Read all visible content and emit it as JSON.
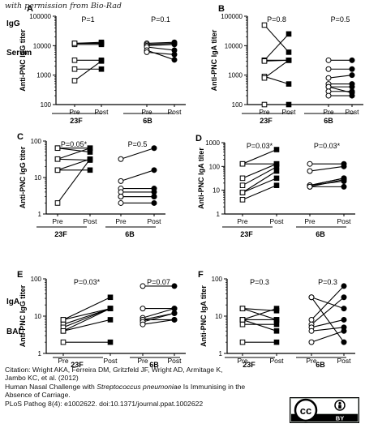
{
  "watermark": "with permission from Bio-Rad",
  "row_labels": {
    "igg": "IgG",
    "serum": "Serum",
    "iga": "IgA",
    "bal": "BAL"
  },
  "license_badge": {
    "cc": "cc",
    "by": "BY"
  },
  "citation": {
    "line1": "Citation: Wright AKA, Ferreira DM, Gritzfeld JF, Wright AD, Armitage K,",
    "line2": "Jambo KC, et al. (2012)",
    "line3_pre": "Human Nasal Challenge with ",
    "line3_species": "Streptococcus pneumoniae",
    "line3_post": " Is Immunising in the",
    "line4": "Absence of Carriage.",
    "line5": "PLoS Pathog 8(4): e1002622. doi:10.1371/journal.ppat.1002622"
  },
  "colors": {
    "line": "#000000",
    "open_fill": "#ffffff",
    "filled": "#000000"
  },
  "chart_data": [
    {
      "panel": "A",
      "type": "line",
      "scale": "log",
      "ylabel": "Anti-PNC IgG titer",
      "ylim": [
        100,
        100000
      ],
      "yticks": [
        100,
        1000,
        10000,
        100000
      ],
      "yticklabels": [
        "100",
        "1000",
        "10000",
        "100000"
      ],
      "groups": [
        {
          "name": "23F",
          "pvalue": "P=1",
          "marker": "square",
          "pairs": [
            [
              12000,
              13000
            ],
            [
              11000,
              11000
            ],
            [
              12000,
              12000
            ],
            [
              3200,
              3200
            ],
            [
              1600,
              1600
            ],
            [
              650,
              3000
            ]
          ]
        },
        {
          "name": "6B",
          "pvalue": "P=0.1",
          "marker": "circle",
          "pairs": [
            [
              12000,
              13000
            ],
            [
              11000,
              12000
            ],
            [
              10000,
              11000
            ],
            [
              9000,
              7000
            ],
            [
              7000,
              3300
            ],
            [
              6000,
              5000
            ]
          ]
        }
      ],
      "xticklabels": [
        "Pre",
        "Post",
        "Pre",
        "Post"
      ]
    },
    {
      "panel": "B",
      "type": "line",
      "scale": "log",
      "ylabel": "Anti-PNC IgA titer",
      "ylim": [
        100,
        100000
      ],
      "yticks": [
        100,
        1000,
        10000,
        100000
      ],
      "yticklabels": [
        "100",
        "1000",
        "10000",
        "100000"
      ],
      "groups": [
        {
          "name": "23F",
          "pvalue": "P=0.8",
          "marker": "square",
          "pairs": [
            [
              50000,
              6000
            ],
            [
              3200,
              25000
            ],
            [
              3200,
              3200
            ],
            [
              3000,
              3200
            ],
            [
              900,
              500
            ],
            [
              800,
              3200
            ],
            [
              100,
              100
            ]
          ]
        },
        {
          "name": "6B",
          "pvalue": "P=0.5",
          "marker": "circle",
          "pairs": [
            [
              3200,
              3200
            ],
            [
              1600,
              1600
            ],
            [
              800,
              1000
            ],
            [
              500,
              500
            ],
            [
              400,
              400
            ],
            [
              400,
              250
            ],
            [
              280,
              280
            ],
            [
              200,
              200
            ]
          ]
        }
      ],
      "xticklabels": [
        "Pre",
        "Post",
        "Pre",
        "Post"
      ]
    },
    {
      "panel": "C",
      "type": "line",
      "scale": "log",
      "ylabel": "Anti-PNC IgG titer",
      "ylim": [
        1,
        100
      ],
      "yticks": [
        1,
        10,
        100
      ],
      "yticklabels": [
        "1",
        "10",
        "100"
      ],
      "groups": [
        {
          "name": "23F",
          "pvalue": "P=0.05*",
          "marker": "square",
          "pairs": [
            [
              64,
              64
            ],
            [
              64,
              50
            ],
            [
              32,
              64
            ],
            [
              32,
              30
            ],
            [
              16,
              32
            ],
            [
              16,
              16
            ],
            [
              2,
              32
            ]
          ]
        },
        {
          "name": "6B",
          "pvalue": "P=0.5",
          "marker": "circle",
          "pairs": [
            [
              32,
              64
            ],
            [
              8,
              16
            ],
            [
              5,
              5
            ],
            [
              4,
              4
            ],
            [
              3,
              3
            ],
            [
              3,
              3
            ],
            [
              2,
              2
            ]
          ]
        }
      ],
      "xticklabels": [
        "Pre",
        "Post",
        "Pre",
        "Post"
      ]
    },
    {
      "panel": "D",
      "type": "line",
      "scale": "log",
      "ylabel": "Anti-PNC IgA titer",
      "ylim": [
        1,
        1000
      ],
      "yticks": [
        1,
        10,
        100,
        1000
      ],
      "yticklabels": [
        "1",
        "10",
        "100",
        "1000"
      ],
      "groups": [
        {
          "name": "23F",
          "pvalue": "P=0.03*",
          "marker": "square",
          "pairs": [
            [
              128,
              512
            ],
            [
              32,
              128
            ],
            [
              16,
              96
            ],
            [
              8,
              64
            ],
            [
              8,
              32
            ],
            [
              4,
              16
            ],
            [
              128,
              128
            ]
          ]
        },
        {
          "name": "6B",
          "pvalue": "P=0.03*",
          "marker": "circle",
          "pairs": [
            [
              128,
              128
            ],
            [
              64,
              100
            ],
            [
              16,
              32
            ],
            [
              16,
              32
            ],
            [
              16,
              24
            ],
            [
              14,
              28
            ],
            [
              14,
              14
            ]
          ]
        }
      ],
      "xticklabels": [
        "Pre",
        "Post",
        "Pre",
        "Post"
      ]
    },
    {
      "panel": "E",
      "type": "line",
      "scale": "log",
      "ylabel": "Anti-PNC IgG titer",
      "ylim": [
        1,
        100
      ],
      "yticks": [
        1,
        10,
        100
      ],
      "yticklabels": [
        "1",
        "10",
        "100"
      ],
      "groups": [
        {
          "name": "23F",
          "pvalue": "P=0.03*",
          "marker": "square",
          "pairs": [
            [
              8,
              32
            ],
            [
              8,
              16
            ],
            [
              6,
              16
            ],
            [
              5,
              16
            ],
            [
              4,
              16
            ],
            [
              4,
              8
            ],
            [
              2,
              2
            ]
          ]
        },
        {
          "name": "6B",
          "pvalue": "P=0.07",
          "marker": "circle",
          "pairs": [
            [
              64,
              64
            ],
            [
              16,
              16
            ],
            [
              9,
              16
            ],
            [
              8,
              12
            ],
            [
              8,
              8
            ],
            [
              7,
              12
            ],
            [
              6,
              8
            ]
          ]
        }
      ],
      "xticklabels": [
        "Pre",
        "Post",
        "Pre",
        "Post"
      ]
    },
    {
      "panel": "F",
      "type": "line",
      "scale": "log",
      "ylabel": "Anti-PNC IgA titer",
      "ylim": [
        1,
        100
      ],
      "yticks": [
        1,
        10,
        100
      ],
      "yticklabels": [
        "1",
        "10",
        "100"
      ],
      "groups": [
        {
          "name": "23F",
          "pvalue": "P=0.3",
          "marker": "square",
          "pairs": [
            [
              16,
              8
            ],
            [
              16,
              14
            ],
            [
              8,
              16
            ],
            [
              8,
              8
            ],
            [
              8,
              4
            ],
            [
              6,
              6
            ],
            [
              2,
              2
            ]
          ]
        },
        {
          "name": "6B",
          "pvalue": "P=0.3",
          "marker": "circle",
          "pairs": [
            [
              32,
              16
            ],
            [
              32,
              2
            ],
            [
              8,
              64
            ],
            [
              6,
              32
            ],
            [
              5,
              8
            ],
            [
              4,
              5
            ],
            [
              2,
              4
            ]
          ]
        }
      ],
      "xticklabels": [
        "Pre",
        "Post",
        "Pre",
        "Post"
      ]
    }
  ]
}
